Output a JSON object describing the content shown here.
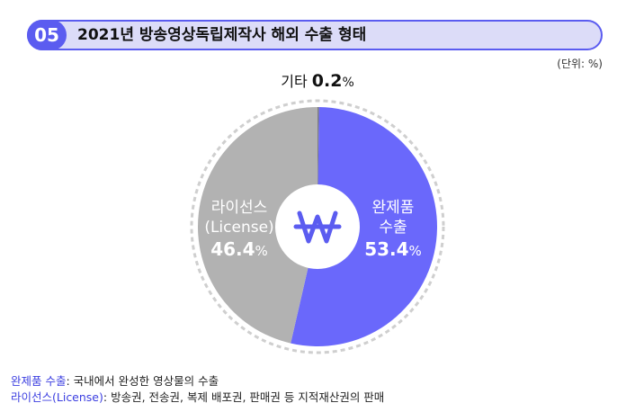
{
  "header": {
    "badge": "05",
    "title": "2021년 방송영상독립제작사 해외 수출 형태",
    "unit": "(단위: %)"
  },
  "chart_data": {
    "type": "pie",
    "title": "2021년 방송영상독립제작사 해외 수출 형태",
    "unit": "%",
    "slices": [
      {
        "name": "기타",
        "value": 0.2,
        "pct_label": "%",
        "color": "#b2b2b2"
      },
      {
        "name": "완제품 수출",
        "line1": "완제품",
        "line2": "수출",
        "value": 53.4,
        "pct_label": "%",
        "color": "#6a68fb"
      },
      {
        "name": "라이선스 (License)",
        "line1": "라이선스",
        "line2": "(License)",
        "value": 46.4,
        "pct_label": "%",
        "color": "#b2b2b2"
      }
    ],
    "center_icon": "won-currency-icon",
    "colors": {
      "accent": "#5b5cf0",
      "finished": "#6a68fb",
      "license": "#b2b2b2",
      "other_slice": "#7d7d7d"
    }
  },
  "legend": [
    {
      "key": "완제품 수출",
      "desc": ": 국내에서 완성한 영상물의 수출"
    },
    {
      "key": "라이선스(License)",
      "desc": ": 방송권, 전송권, 복제 배포권, 판매권 등 지적재산권의 판매"
    }
  ]
}
